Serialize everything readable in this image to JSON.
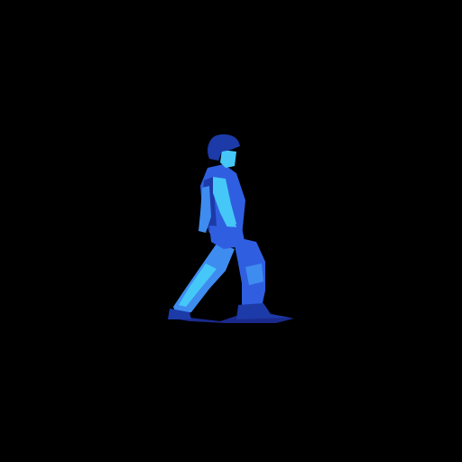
{
  "scene": {
    "background_color": "#000000",
    "subject": "walking-figure",
    "palette": {
      "primary": "#2f5fe0",
      "highlight": "#45c8f7",
      "mid": "#3f8cf0",
      "dark": "#1c3aa8",
      "shadow": "#1a2a8c"
    }
  }
}
